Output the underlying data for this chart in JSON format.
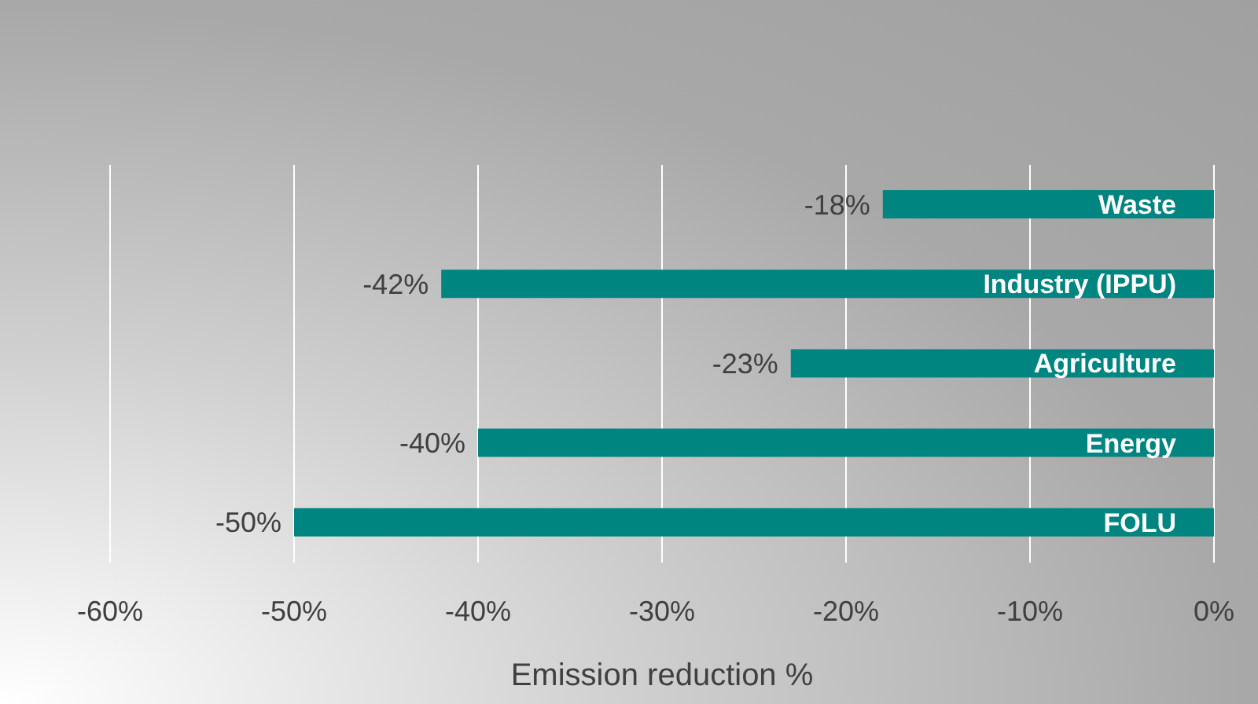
{
  "chart_data": {
    "type": "bar",
    "orientation": "horizontal",
    "categories": [
      "Waste",
      "Industry (IPPU)",
      "Agriculture",
      "Energy",
      "FOLU"
    ],
    "values": [
      -18,
      -42,
      -23,
      -40,
      -50
    ],
    "value_labels": [
      "-18%",
      "-42%",
      "-23%",
      "-40%",
      "-50%"
    ],
    "color": "#008580",
    "xlabel": "Emission reduction %",
    "xlim": [
      -60,
      0
    ],
    "xticks": [
      {
        "value": -60,
        "label": "-60%"
      },
      {
        "value": -50,
        "label": "-50%"
      },
      {
        "value": -40,
        "label": "-40%"
      },
      {
        "value": -30,
        "label": "-30%"
      },
      {
        "value": -20,
        "label": "-20%"
      },
      {
        "value": -10,
        "label": "-10%"
      },
      {
        "value": 0,
        "label": "0%"
      }
    ],
    "grid": "x"
  }
}
